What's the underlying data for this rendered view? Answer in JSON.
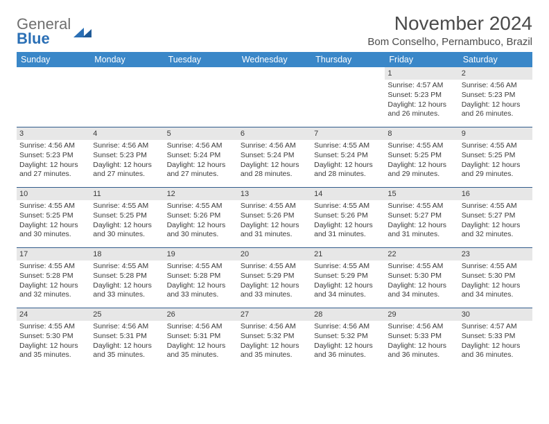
{
  "logo": {
    "line1": "General",
    "line2": "Blue"
  },
  "title": "November 2024",
  "location": "Bom Conselho, Pernambuco, Brazil",
  "colors": {
    "header_bg": "#3a87c8",
    "header_text": "#ffffff",
    "daynum_bg": "#e7e7e7",
    "rule": "#2f5a8a",
    "logo_blue": "#2a6fb5",
    "logo_gray": "#6f6f6f"
  },
  "dayHeaders": [
    "Sunday",
    "Monday",
    "Tuesday",
    "Wednesday",
    "Thursday",
    "Friday",
    "Saturday"
  ],
  "weeks": [
    [
      {
        "n": "",
        "lines": []
      },
      {
        "n": "",
        "lines": []
      },
      {
        "n": "",
        "lines": []
      },
      {
        "n": "",
        "lines": []
      },
      {
        "n": "",
        "lines": []
      },
      {
        "n": "1",
        "lines": [
          "Sunrise: 4:57 AM",
          "Sunset: 5:23 PM",
          "Daylight: 12 hours and 26 minutes."
        ]
      },
      {
        "n": "2",
        "lines": [
          "Sunrise: 4:56 AM",
          "Sunset: 5:23 PM",
          "Daylight: 12 hours and 26 minutes."
        ]
      }
    ],
    [
      {
        "n": "3",
        "lines": [
          "Sunrise: 4:56 AM",
          "Sunset: 5:23 PM",
          "Daylight: 12 hours and 27 minutes."
        ]
      },
      {
        "n": "4",
        "lines": [
          "Sunrise: 4:56 AM",
          "Sunset: 5:23 PM",
          "Daylight: 12 hours and 27 minutes."
        ]
      },
      {
        "n": "5",
        "lines": [
          "Sunrise: 4:56 AM",
          "Sunset: 5:24 PM",
          "Daylight: 12 hours and 27 minutes."
        ]
      },
      {
        "n": "6",
        "lines": [
          "Sunrise: 4:56 AM",
          "Sunset: 5:24 PM",
          "Daylight: 12 hours and 28 minutes."
        ]
      },
      {
        "n": "7",
        "lines": [
          "Sunrise: 4:55 AM",
          "Sunset: 5:24 PM",
          "Daylight: 12 hours and 28 minutes."
        ]
      },
      {
        "n": "8",
        "lines": [
          "Sunrise: 4:55 AM",
          "Sunset: 5:25 PM",
          "Daylight: 12 hours and 29 minutes."
        ]
      },
      {
        "n": "9",
        "lines": [
          "Sunrise: 4:55 AM",
          "Sunset: 5:25 PM",
          "Daylight: 12 hours and 29 minutes."
        ]
      }
    ],
    [
      {
        "n": "10",
        "lines": [
          "Sunrise: 4:55 AM",
          "Sunset: 5:25 PM",
          "Daylight: 12 hours and 30 minutes."
        ]
      },
      {
        "n": "11",
        "lines": [
          "Sunrise: 4:55 AM",
          "Sunset: 5:25 PM",
          "Daylight: 12 hours and 30 minutes."
        ]
      },
      {
        "n": "12",
        "lines": [
          "Sunrise: 4:55 AM",
          "Sunset: 5:26 PM",
          "Daylight: 12 hours and 30 minutes."
        ]
      },
      {
        "n": "13",
        "lines": [
          "Sunrise: 4:55 AM",
          "Sunset: 5:26 PM",
          "Daylight: 12 hours and 31 minutes."
        ]
      },
      {
        "n": "14",
        "lines": [
          "Sunrise: 4:55 AM",
          "Sunset: 5:26 PM",
          "Daylight: 12 hours and 31 minutes."
        ]
      },
      {
        "n": "15",
        "lines": [
          "Sunrise: 4:55 AM",
          "Sunset: 5:27 PM",
          "Daylight: 12 hours and 31 minutes."
        ]
      },
      {
        "n": "16",
        "lines": [
          "Sunrise: 4:55 AM",
          "Sunset: 5:27 PM",
          "Daylight: 12 hours and 32 minutes."
        ]
      }
    ],
    [
      {
        "n": "17",
        "lines": [
          "Sunrise: 4:55 AM",
          "Sunset: 5:28 PM",
          "Daylight: 12 hours and 32 minutes."
        ]
      },
      {
        "n": "18",
        "lines": [
          "Sunrise: 4:55 AM",
          "Sunset: 5:28 PM",
          "Daylight: 12 hours and 33 minutes."
        ]
      },
      {
        "n": "19",
        "lines": [
          "Sunrise: 4:55 AM",
          "Sunset: 5:28 PM",
          "Daylight: 12 hours and 33 minutes."
        ]
      },
      {
        "n": "20",
        "lines": [
          "Sunrise: 4:55 AM",
          "Sunset: 5:29 PM",
          "Daylight: 12 hours and 33 minutes."
        ]
      },
      {
        "n": "21",
        "lines": [
          "Sunrise: 4:55 AM",
          "Sunset: 5:29 PM",
          "Daylight: 12 hours and 34 minutes."
        ]
      },
      {
        "n": "22",
        "lines": [
          "Sunrise: 4:55 AM",
          "Sunset: 5:30 PM",
          "Daylight: 12 hours and 34 minutes."
        ]
      },
      {
        "n": "23",
        "lines": [
          "Sunrise: 4:55 AM",
          "Sunset: 5:30 PM",
          "Daylight: 12 hours and 34 minutes."
        ]
      }
    ],
    [
      {
        "n": "24",
        "lines": [
          "Sunrise: 4:55 AM",
          "Sunset: 5:30 PM",
          "Daylight: 12 hours and 35 minutes."
        ]
      },
      {
        "n": "25",
        "lines": [
          "Sunrise: 4:56 AM",
          "Sunset: 5:31 PM",
          "Daylight: 12 hours and 35 minutes."
        ]
      },
      {
        "n": "26",
        "lines": [
          "Sunrise: 4:56 AM",
          "Sunset: 5:31 PM",
          "Daylight: 12 hours and 35 minutes."
        ]
      },
      {
        "n": "27",
        "lines": [
          "Sunrise: 4:56 AM",
          "Sunset: 5:32 PM",
          "Daylight: 12 hours and 35 minutes."
        ]
      },
      {
        "n": "28",
        "lines": [
          "Sunrise: 4:56 AM",
          "Sunset: 5:32 PM",
          "Daylight: 12 hours and 36 minutes."
        ]
      },
      {
        "n": "29",
        "lines": [
          "Sunrise: 4:56 AM",
          "Sunset: 5:33 PM",
          "Daylight: 12 hours and 36 minutes."
        ]
      },
      {
        "n": "30",
        "lines": [
          "Sunrise: 4:57 AM",
          "Sunset: 5:33 PM",
          "Daylight: 12 hours and 36 minutes."
        ]
      }
    ]
  ]
}
